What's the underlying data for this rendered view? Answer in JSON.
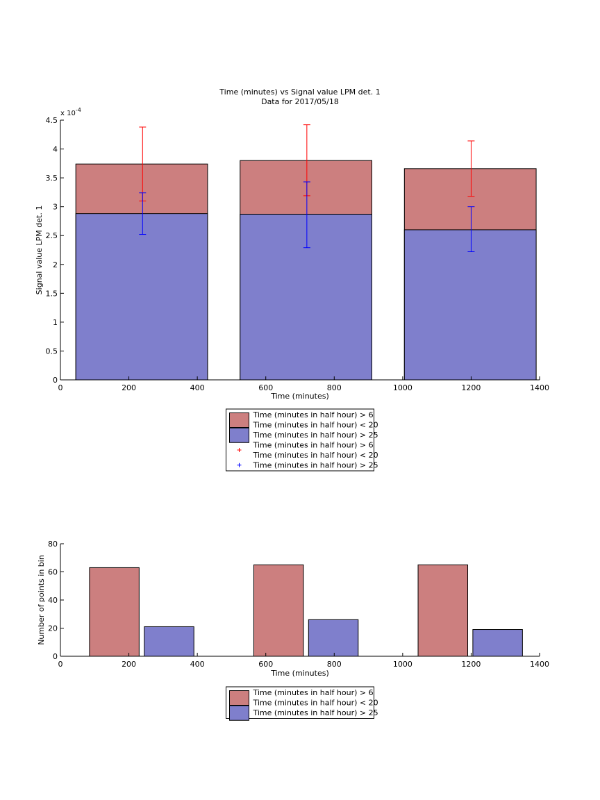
{
  "chart_data": [
    {
      "type": "bar",
      "stacked": false,
      "overlay": true,
      "title": "Time (minutes) vs Signal value LPM det. 1",
      "subtitle": "Data for 2017/05/18",
      "xlabel": "Time (minutes)",
      "ylabel": "Signal value LPM det. 1",
      "y_exponent_label": "x 10",
      "y_exponent_power": "-4",
      "xlim": [
        0,
        1400
      ],
      "ylim": [
        0,
        4.5
      ],
      "y_scale_factor": 0.0001,
      "xticks": [
        "0",
        "200",
        "400",
        "600",
        "800",
        "1000",
        "1200",
        "1400"
      ],
      "yticks": [
        "0",
        "0.5",
        "1",
        "1.5",
        "2",
        "2.5",
        "3",
        "3.5",
        "4",
        "4.5"
      ],
      "bins": [
        {
          "x_start": 45,
          "x_end": 430,
          "center": 240
        },
        {
          "x_start": 525,
          "x_end": 910,
          "center": 720
        },
        {
          "x_start": 1005,
          "x_end": 1390,
          "center": 1200
        }
      ],
      "series": [
        {
          "name": "Time (minutes in half hour) > 6\nTime (minutes in half hour) < 20",
          "color": "#cc7f7f",
          "values": [
            3.74,
            3.8,
            3.66
          ],
          "error_color": "#ff0000",
          "errors_low": [
            3.1,
            3.19,
            3.18
          ],
          "errors_high": [
            4.38,
            4.42,
            4.14
          ]
        },
        {
          "name": "Time (minutes in half hour) > 25",
          "color": "#7f7fcc",
          "values": [
            2.88,
            2.87,
            2.6
          ],
          "error_color": "#0000ff",
          "errors_low": [
            2.52,
            2.29,
            2.22
          ],
          "errors_high": [
            3.24,
            3.43,
            3.0
          ]
        }
      ],
      "legend": [
        {
          "kind": "patch",
          "color": "#cc7f7f",
          "lines": [
            "Time (minutes in half hour) > 6",
            "Time (minutes in half hour) < 20"
          ]
        },
        {
          "kind": "patch",
          "color": "#7f7fcc",
          "lines": [
            "Time (minutes in half hour) > 25"
          ]
        },
        {
          "kind": "marker",
          "color": "#ff0000",
          "lines": [
            "Time (minutes in half hour) > 6",
            "Time (minutes in half hour) < 20"
          ]
        },
        {
          "kind": "marker",
          "color": "#0000ff",
          "lines": [
            "Time (minutes in half hour) > 25"
          ]
        }
      ],
      "legend_placement": "below"
    },
    {
      "type": "bar",
      "xlabel": "Time (minutes)",
      "ylabel": "Number of points in bin",
      "xlim": [
        0,
        1400
      ],
      "ylim": [
        0,
        80
      ],
      "xticks": [
        "0",
        "200",
        "400",
        "600",
        "800",
        "1000",
        "1200",
        "1400"
      ],
      "yticks": [
        "0",
        "20",
        "40",
        "60",
        "80"
      ],
      "series": [
        {
          "name": "Time (minutes in half hour) > 6\nTime (minutes in half hour) < 20",
          "color": "#cc7f7f",
          "x_ranges": [
            [
              85,
              230
            ],
            [
              565,
              710
            ],
            [
              1045,
              1190
            ]
          ],
          "values": [
            63,
            65,
            65
          ]
        },
        {
          "name": "Time (minutes in half hour) > 25",
          "color": "#7f7fcc",
          "x_ranges": [
            [
              245,
              390
            ],
            [
              725,
              870
            ],
            [
              1205,
              1350
            ]
          ],
          "values": [
            21,
            26,
            19
          ]
        }
      ],
      "legend": [
        {
          "kind": "patch",
          "color": "#cc7f7f",
          "lines": [
            "Time (minutes in half hour) > 6",
            "Time (minutes in half hour) < 20"
          ]
        },
        {
          "kind": "patch",
          "color": "#7f7fcc",
          "lines": [
            "Time (minutes in half hour) > 25"
          ]
        }
      ],
      "legend_placement": "below"
    }
  ]
}
